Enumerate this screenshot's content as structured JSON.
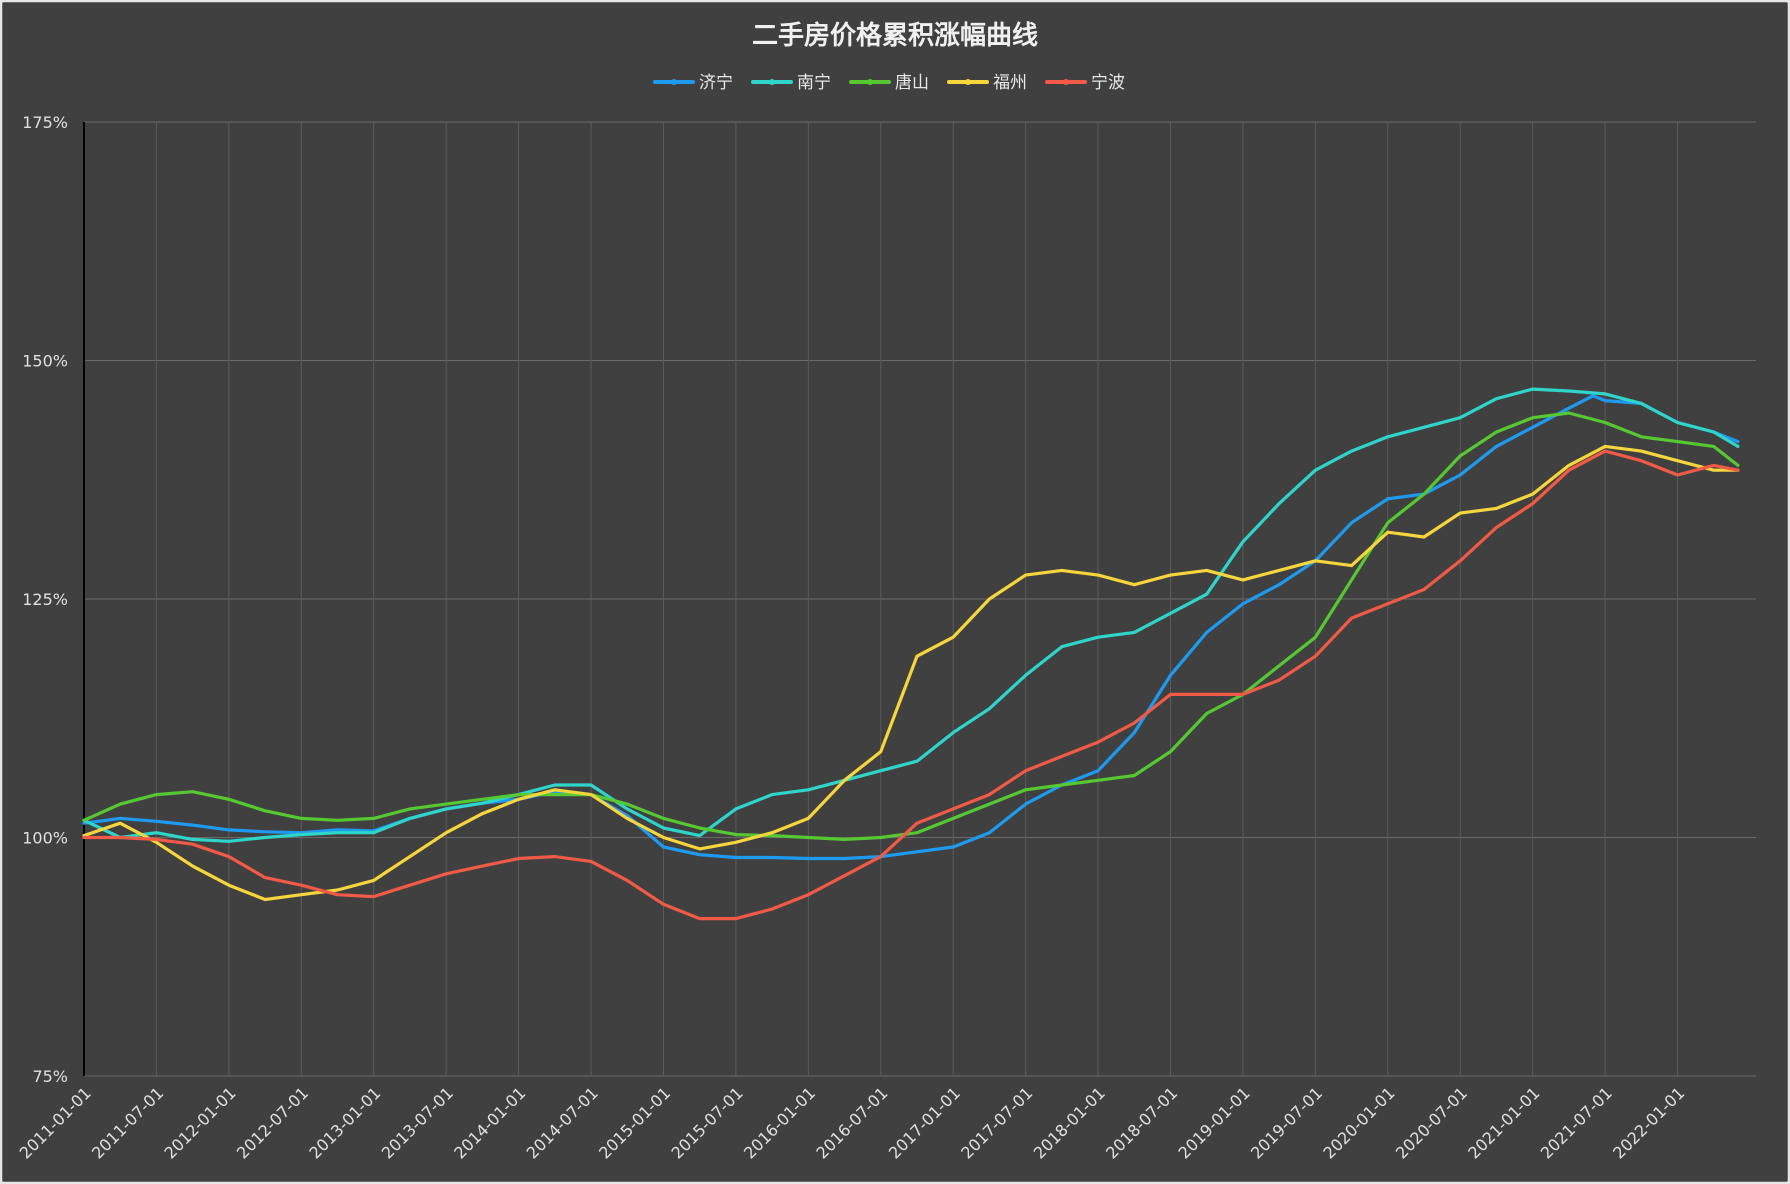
{
  "chart_data": {
    "type": "line",
    "title": "二手房价格累积涨幅曲线",
    "xlabel": "",
    "ylabel": "",
    "ylim": [
      75,
      175
    ],
    "yticks": [
      "75%",
      "100%",
      "125%",
      "150%",
      "175%"
    ],
    "yticks_values": [
      75,
      100,
      125,
      150,
      175
    ],
    "x_range": [
      "2011-01-01",
      "2022-07-01"
    ],
    "x_ticks": [
      "2011-01-01",
      "2011-07-01",
      "2012-01-01",
      "2012-07-01",
      "2013-01-01",
      "2013-07-01",
      "2014-01-01",
      "2014-07-01",
      "2015-01-01",
      "2015-07-01",
      "2016-01-01",
      "2016-07-01",
      "2017-01-01",
      "2017-07-01",
      "2018-01-01",
      "2018-07-01",
      "2019-01-01",
      "2019-07-01",
      "2020-01-01",
      "2020-07-01",
      "2021-01-01",
      "2021-07-01",
      "2022-01-01"
    ],
    "grid": true,
    "legend_position": "top-center",
    "background": "#404040",
    "series": [
      {
        "name": "济宁",
        "color": "#1E9BF0",
        "points": [
          [
            "2011-01",
            101.5
          ],
          [
            "2011-04",
            102.0
          ],
          [
            "2011-07",
            101.7
          ],
          [
            "2011-10",
            101.3
          ],
          [
            "2012-01",
            100.8
          ],
          [
            "2012-04",
            100.6
          ],
          [
            "2012-07",
            100.5
          ],
          [
            "2012-10",
            100.8
          ],
          [
            "2013-01",
            100.7
          ],
          [
            "2013-04",
            102.0
          ],
          [
            "2013-07",
            103.0
          ],
          [
            "2013-10",
            103.6
          ],
          [
            "2014-01",
            104.0
          ],
          [
            "2014-04",
            104.8
          ],
          [
            "2014-07",
            104.5
          ],
          [
            "2014-10",
            102.3
          ],
          [
            "2015-01",
            99.0
          ],
          [
            "2015-04",
            98.2
          ],
          [
            "2015-07",
            97.9
          ],
          [
            "2015-10",
            97.9
          ],
          [
            "2016-01",
            97.8
          ],
          [
            "2016-04",
            97.8
          ],
          [
            "2016-07",
            98.0
          ],
          [
            "2016-10",
            98.5
          ],
          [
            "2017-01",
            99.0
          ],
          [
            "2017-04",
            100.5
          ],
          [
            "2017-07",
            103.5
          ],
          [
            "2017-10",
            105.5
          ],
          [
            "2018-01",
            107.0
          ],
          [
            "2018-04",
            111.0
          ],
          [
            "2018-07",
            117.0
          ],
          [
            "2018-10",
            121.5
          ],
          [
            "2019-01",
            124.5
          ],
          [
            "2019-04",
            126.5
          ],
          [
            "2019-07",
            129.0
          ],
          [
            "2019-10",
            133.0
          ],
          [
            "2020-01",
            135.5
          ],
          [
            "2020-04",
            136.0
          ],
          [
            "2020-07",
            138.0
          ],
          [
            "2020-10",
            141.0
          ],
          [
            "2021-01",
            143.0
          ],
          [
            "2021-04",
            145.0
          ],
          [
            "2021-06",
            146.3
          ],
          [
            "2021-07",
            145.8
          ],
          [
            "2021-10",
            145.5
          ],
          [
            "2022-01",
            143.5
          ],
          [
            "2022-04",
            142.5
          ],
          [
            "2022-06",
            141.5
          ]
        ]
      },
      {
        "name": "南宁",
        "color": "#2ED5C8",
        "points": [
          [
            "2011-01",
            101.8
          ],
          [
            "2011-04",
            100.0
          ],
          [
            "2011-07",
            100.5
          ],
          [
            "2011-10",
            99.8
          ],
          [
            "2012-01",
            99.6
          ],
          [
            "2012-04",
            100.0
          ],
          [
            "2012-07",
            100.3
          ],
          [
            "2012-10",
            100.5
          ],
          [
            "2013-01",
            100.5
          ],
          [
            "2013-04",
            102.0
          ],
          [
            "2013-07",
            103.0
          ],
          [
            "2013-10",
            103.6
          ],
          [
            "2014-01",
            104.5
          ],
          [
            "2014-04",
            105.5
          ],
          [
            "2014-07",
            105.5
          ],
          [
            "2014-10",
            103.0
          ],
          [
            "2015-01",
            101.0
          ],
          [
            "2015-04",
            100.2
          ],
          [
            "2015-07",
            103.0
          ],
          [
            "2015-10",
            104.5
          ],
          [
            "2016-01",
            105.0
          ],
          [
            "2016-04",
            106.0
          ],
          [
            "2016-07",
            107.0
          ],
          [
            "2016-10",
            108.0
          ],
          [
            "2017-01",
            111.0
          ],
          [
            "2017-04",
            113.5
          ],
          [
            "2017-07",
            117.0
          ],
          [
            "2017-10",
            120.0
          ],
          [
            "2018-01",
            121.0
          ],
          [
            "2018-04",
            121.5
          ],
          [
            "2018-07",
            123.5
          ],
          [
            "2018-10",
            125.5
          ],
          [
            "2019-01",
            131.0
          ],
          [
            "2019-04",
            135.0
          ],
          [
            "2019-07",
            138.5
          ],
          [
            "2019-10",
            140.5
          ],
          [
            "2020-01",
            142.0
          ],
          [
            "2020-04",
            143.0
          ],
          [
            "2020-07",
            144.0
          ],
          [
            "2020-10",
            146.0
          ],
          [
            "2021-01",
            147.0
          ],
          [
            "2021-04",
            146.8
          ],
          [
            "2021-07",
            146.5
          ],
          [
            "2021-10",
            145.5
          ],
          [
            "2022-01",
            143.5
          ],
          [
            "2022-04",
            142.5
          ],
          [
            "2022-06",
            141.0
          ]
        ]
      },
      {
        "name": "唐山",
        "color": "#55C832",
        "points": [
          [
            "2011-01",
            101.8
          ],
          [
            "2011-04",
            103.5
          ],
          [
            "2011-07",
            104.5
          ],
          [
            "2011-10",
            104.8
          ],
          [
            "2012-01",
            104.0
          ],
          [
            "2012-04",
            102.8
          ],
          [
            "2012-07",
            102.0
          ],
          [
            "2012-10",
            101.8
          ],
          [
            "2013-01",
            102.0
          ],
          [
            "2013-04",
            103.0
          ],
          [
            "2013-07",
            103.5
          ],
          [
            "2013-10",
            104.0
          ],
          [
            "2014-01",
            104.5
          ],
          [
            "2014-04",
            104.5
          ],
          [
            "2014-07",
            104.5
          ],
          [
            "2014-10",
            103.5
          ],
          [
            "2015-01",
            102.0
          ],
          [
            "2015-04",
            101.0
          ],
          [
            "2015-07",
            100.3
          ],
          [
            "2015-10",
            100.2
          ],
          [
            "2016-01",
            100.0
          ],
          [
            "2016-04",
            99.8
          ],
          [
            "2016-07",
            100.0
          ],
          [
            "2016-10",
            100.5
          ],
          [
            "2017-01",
            102.0
          ],
          [
            "2017-04",
            103.5
          ],
          [
            "2017-07",
            105.0
          ],
          [
            "2017-10",
            105.5
          ],
          [
            "2018-01",
            106.0
          ],
          [
            "2018-04",
            106.5
          ],
          [
            "2018-07",
            109.0
          ],
          [
            "2018-10",
            113.0
          ],
          [
            "2019-01",
            115.0
          ],
          [
            "2019-04",
            118.0
          ],
          [
            "2019-07",
            121.0
          ],
          [
            "2019-10",
            127.0
          ],
          [
            "2020-01",
            133.0
          ],
          [
            "2020-04",
            136.0
          ],
          [
            "2020-07",
            140.0
          ],
          [
            "2020-10",
            142.5
          ],
          [
            "2021-01",
            144.0
          ],
          [
            "2021-04",
            144.5
          ],
          [
            "2021-07",
            143.5
          ],
          [
            "2021-10",
            142.0
          ],
          [
            "2022-01",
            141.5
          ],
          [
            "2022-04",
            141.0
          ],
          [
            "2022-06",
            139.0
          ]
        ]
      },
      {
        "name": "福州",
        "color": "#F5D63D",
        "points": [
          [
            "2011-01",
            100.2
          ],
          [
            "2011-04",
            101.5
          ],
          [
            "2011-07",
            99.5
          ],
          [
            "2011-10",
            97.0
          ],
          [
            "2012-01",
            95.0
          ],
          [
            "2012-04",
            93.5
          ],
          [
            "2012-07",
            94.0
          ],
          [
            "2012-10",
            94.5
          ],
          [
            "2013-01",
            95.5
          ],
          [
            "2013-04",
            98.0
          ],
          [
            "2013-07",
            100.5
          ],
          [
            "2013-10",
            102.5
          ],
          [
            "2014-01",
            104.0
          ],
          [
            "2014-04",
            105.0
          ],
          [
            "2014-07",
            104.5
          ],
          [
            "2014-10",
            102.0
          ],
          [
            "2015-01",
            100.0
          ],
          [
            "2015-04",
            98.8
          ],
          [
            "2015-07",
            99.5
          ],
          [
            "2015-10",
            100.5
          ],
          [
            "2016-01",
            102.0
          ],
          [
            "2016-04",
            106.0
          ],
          [
            "2016-07",
            109.0
          ],
          [
            "2016-10",
            119.0
          ],
          [
            "2017-01",
            121.0
          ],
          [
            "2017-04",
            125.0
          ],
          [
            "2017-07",
            127.5
          ],
          [
            "2017-10",
            128.0
          ],
          [
            "2018-01",
            127.5
          ],
          [
            "2018-04",
            126.5
          ],
          [
            "2018-07",
            127.5
          ],
          [
            "2018-10",
            128.0
          ],
          [
            "2019-01",
            127.0
          ],
          [
            "2019-04",
            128.0
          ],
          [
            "2019-07",
            129.0
          ],
          [
            "2019-10",
            128.5
          ],
          [
            "2020-01",
            132.0
          ],
          [
            "2020-04",
            131.5
          ],
          [
            "2020-07",
            134.0
          ],
          [
            "2020-10",
            134.5
          ],
          [
            "2021-01",
            136.0
          ],
          [
            "2021-04",
            139.0
          ],
          [
            "2021-07",
            141.0
          ],
          [
            "2021-10",
            140.5
          ],
          [
            "2022-01",
            139.5
          ],
          [
            "2022-04",
            138.5
          ],
          [
            "2022-06",
            138.5
          ]
        ]
      },
      {
        "name": "宁波",
        "color": "#F05A46",
        "points": [
          [
            "2011-01",
            100.0
          ],
          [
            "2011-04",
            100.0
          ],
          [
            "2011-07",
            99.8
          ],
          [
            "2011-10",
            99.3
          ],
          [
            "2012-01",
            98.0
          ],
          [
            "2012-04",
            95.8
          ],
          [
            "2012-07",
            95.0
          ],
          [
            "2012-10",
            94.0
          ],
          [
            "2013-01",
            93.8
          ],
          [
            "2013-04",
            95.0
          ],
          [
            "2013-07",
            96.2
          ],
          [
            "2013-10",
            97.0
          ],
          [
            "2014-01",
            97.8
          ],
          [
            "2014-04",
            98.0
          ],
          [
            "2014-07",
            97.5
          ],
          [
            "2014-10",
            95.5
          ],
          [
            "2015-01",
            93.0
          ],
          [
            "2015-04",
            91.5
          ],
          [
            "2015-07",
            91.5
          ],
          [
            "2015-10",
            92.5
          ],
          [
            "2016-01",
            94.0
          ],
          [
            "2016-04",
            96.0
          ],
          [
            "2016-07",
            98.0
          ],
          [
            "2016-10",
            101.5
          ],
          [
            "2017-01",
            103.0
          ],
          [
            "2017-04",
            104.5
          ],
          [
            "2017-07",
            107.0
          ],
          [
            "2017-10",
            108.5
          ],
          [
            "2018-01",
            110.0
          ],
          [
            "2018-04",
            112.0
          ],
          [
            "2018-07",
            115.0
          ],
          [
            "2018-10",
            115.0
          ],
          [
            "2019-01",
            115.0
          ],
          [
            "2019-04",
            116.5
          ],
          [
            "2019-07",
            119.0
          ],
          [
            "2019-10",
            123.0
          ],
          [
            "2020-01",
            124.5
          ],
          [
            "2020-04",
            126.0
          ],
          [
            "2020-07",
            129.0
          ],
          [
            "2020-10",
            132.5
          ],
          [
            "2021-01",
            135.0
          ],
          [
            "2021-04",
            138.5
          ],
          [
            "2021-07",
            140.5
          ],
          [
            "2021-10",
            139.5
          ],
          [
            "2022-01",
            138.0
          ],
          [
            "2022-04",
            139.0
          ],
          [
            "2022-06",
            138.5
          ]
        ]
      }
    ]
  }
}
